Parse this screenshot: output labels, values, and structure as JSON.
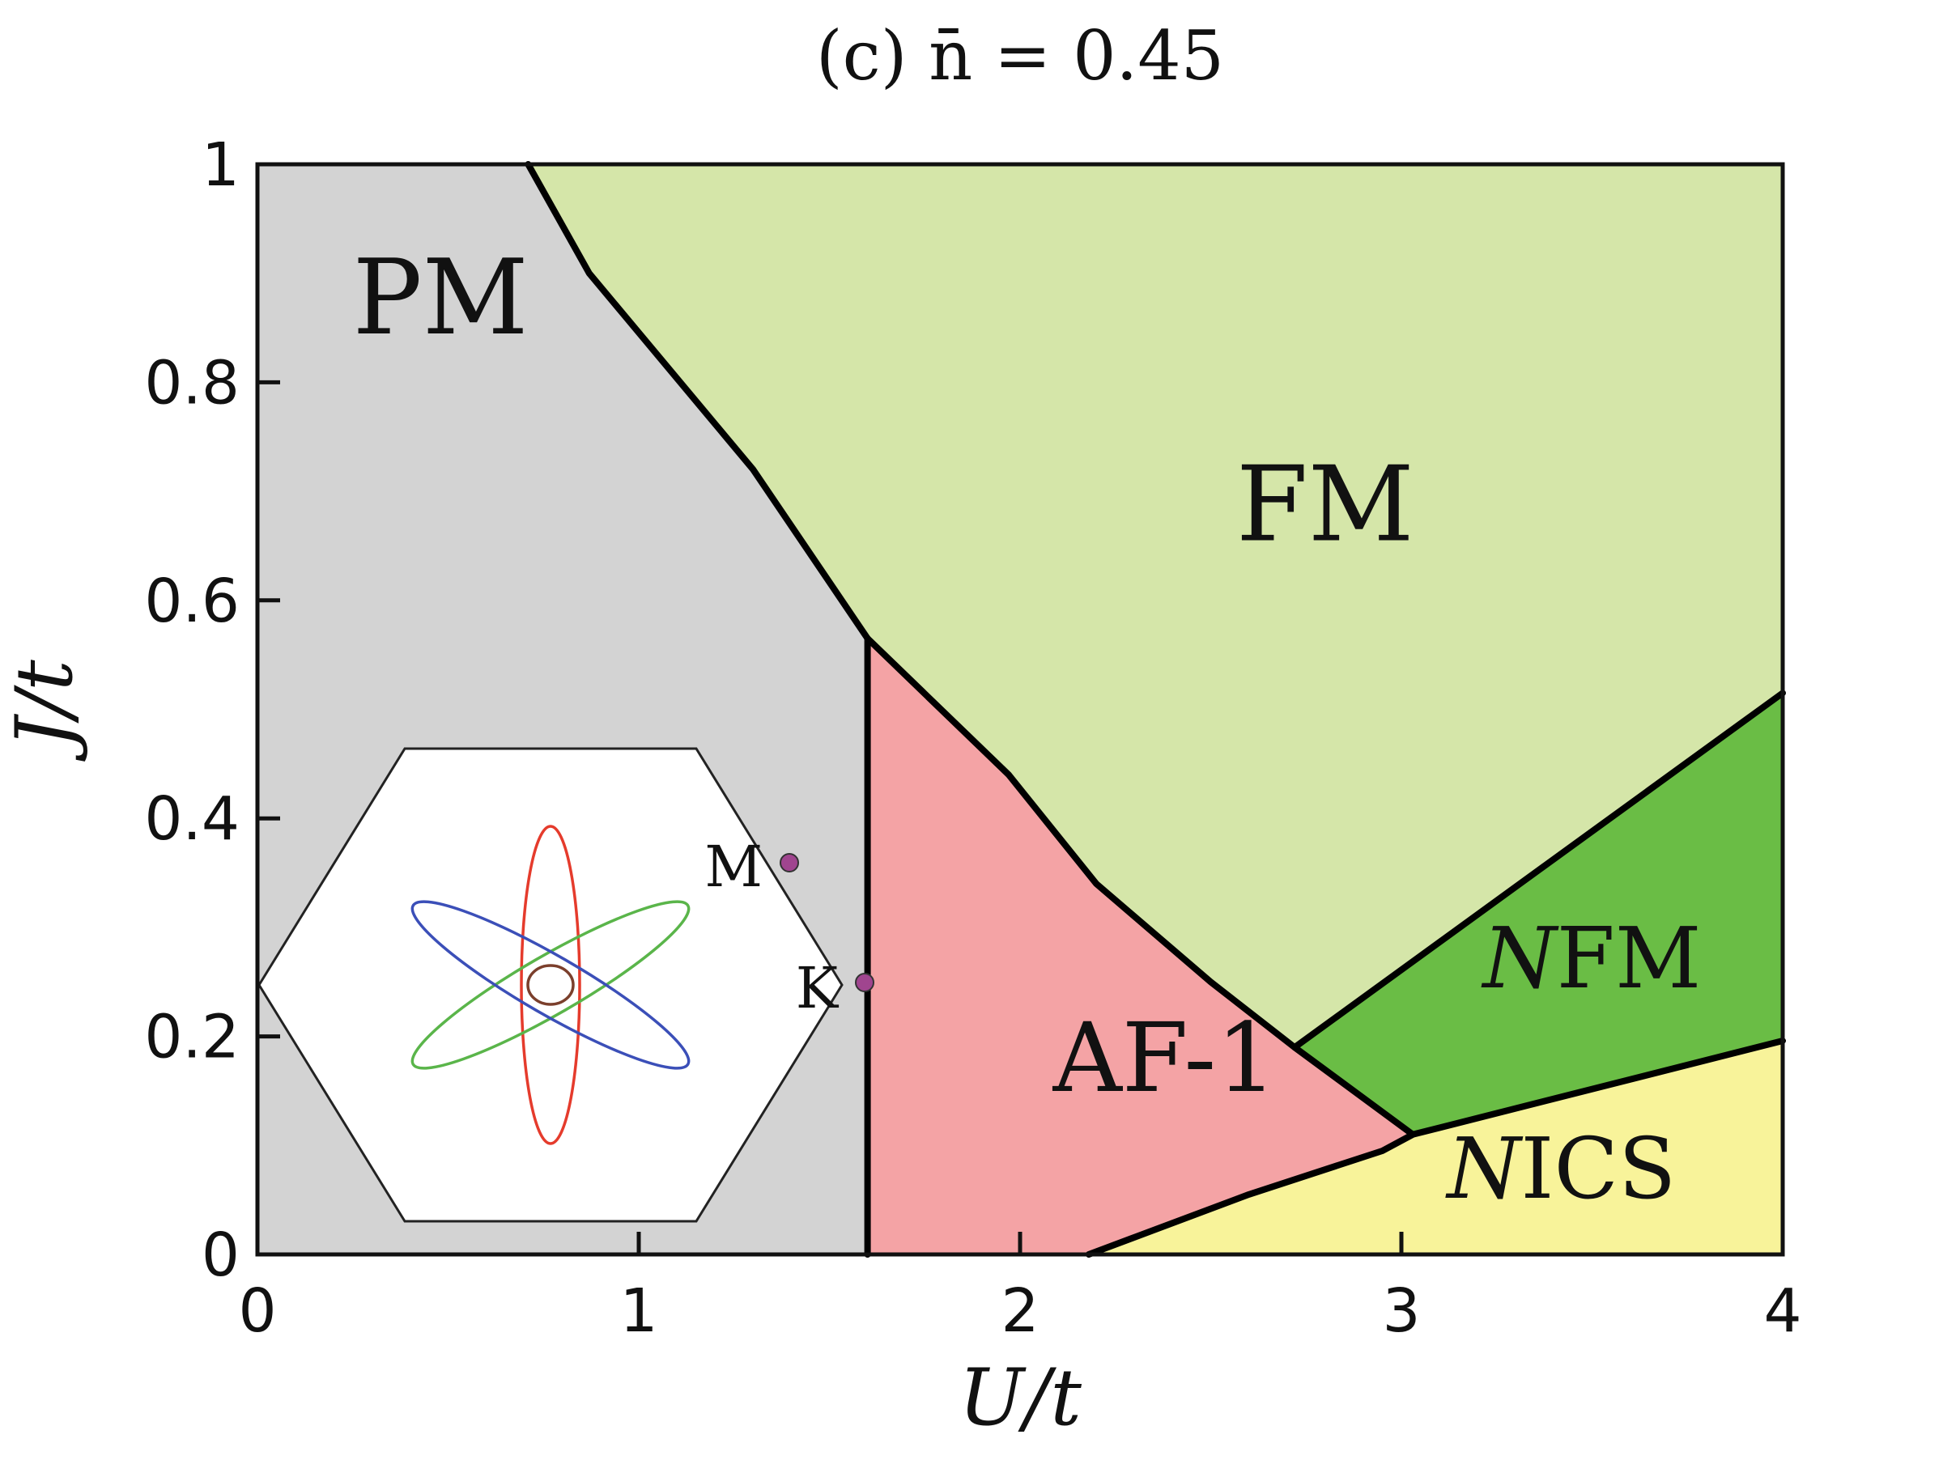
{
  "chart_data": {
    "type": "area",
    "title": "(c) n̄ = 0.45",
    "xlabel": "U/t",
    "ylabel": "J/t",
    "xlim": [
      0,
      4
    ],
    "ylim": [
      0,
      1
    ],
    "x_ticks": [
      "0",
      "1",
      "2",
      "3",
      "4"
    ],
    "y_ticks": [
      "0",
      "0.2",
      "0.4",
      "0.6",
      "0.8",
      "1"
    ],
    "regions": [
      {
        "name": "PM",
        "label": "PM",
        "color": "#d3d3d3",
        "polygon": [
          [
            0,
            0
          ],
          [
            1.6,
            0
          ],
          [
            1.6,
            0.565
          ],
          [
            1.3,
            0.72
          ],
          [
            0.87,
            0.9
          ],
          [
            0.71,
            1.0
          ],
          [
            0,
            1.0
          ]
        ]
      },
      {
        "name": "FM",
        "label": "FM",
        "color": "#d5e6a9",
        "polygon": [
          [
            0.71,
            1.0
          ],
          [
            4,
            1.0
          ],
          [
            4,
            0.515
          ],
          [
            2.72,
            0.19
          ],
          [
            2.5,
            0.25
          ],
          [
            2.2,
            0.34
          ],
          [
            1.97,
            0.44
          ],
          [
            1.6,
            0.565
          ],
          [
            1.3,
            0.72
          ],
          [
            0.87,
            0.9
          ]
        ]
      },
      {
        "name": "AF-1",
        "label": "AF-1",
        "color": "#f4a3a5",
        "polygon": [
          [
            1.6,
            0
          ],
          [
            2.18,
            0
          ],
          [
            2.6,
            0.055
          ],
          [
            2.95,
            0.095
          ],
          [
            3.03,
            0.11
          ],
          [
            2.72,
            0.19
          ],
          [
            2.5,
            0.25
          ],
          [
            2.2,
            0.34
          ],
          [
            1.97,
            0.44
          ],
          [
            1.6,
            0.565
          ]
        ]
      },
      {
        "name": "NFM",
        "label": "FM",
        "prefix": "N",
        "color": "#6abd45",
        "polygon": [
          [
            2.72,
            0.19
          ],
          [
            4,
            0.515
          ],
          [
            4,
            0.196
          ],
          [
            3.03,
            0.11
          ]
        ]
      },
      {
        "name": "NICS",
        "label": "ICS",
        "prefix": "N",
        "color": "#f8f39a",
        "polygon": [
          [
            2.18,
            0
          ],
          [
            4,
            0
          ],
          [
            4,
            0.196
          ],
          [
            3.03,
            0.11
          ],
          [
            2.95,
            0.095
          ],
          [
            2.6,
            0.055
          ]
        ]
      }
    ],
    "boundaries": [
      {
        "name": "PM-FM boundary",
        "points": [
          [
            0.71,
            1.0
          ],
          [
            0.87,
            0.9
          ],
          [
            1.3,
            0.72
          ],
          [
            1.6,
            0.565
          ]
        ]
      },
      {
        "name": "AF1-FM boundary",
        "points": [
          [
            1.6,
            0.565
          ],
          [
            1.97,
            0.44
          ],
          [
            2.2,
            0.34
          ],
          [
            2.5,
            0.25
          ],
          [
            2.72,
            0.19
          ],
          [
            3.03,
            0.11
          ]
        ]
      },
      {
        "name": "PM-AF1 boundary",
        "points": [
          [
            1.6,
            0
          ],
          [
            1.6,
            0.565
          ]
        ]
      },
      {
        "name": "NFM-FM boundary",
        "points": [
          [
            2.72,
            0.19
          ],
          [
            4,
            0.515
          ]
        ]
      },
      {
        "name": "NICS boundary",
        "points": [
          [
            2.18,
            0
          ],
          [
            2.6,
            0.055
          ],
          [
            2.95,
            0.095
          ],
          [
            3.03,
            0.11
          ],
          [
            4,
            0.196
          ]
        ]
      }
    ],
    "inset": {
      "description": "hexagonal Brillouin zone with Fermi surface",
      "points": [
        {
          "label": "M"
        },
        {
          "label": "K"
        }
      ],
      "curve_colors": [
        "#e53b2c",
        "#5ab54a",
        "#3b4fb8",
        "#7b3f2c"
      ]
    }
  },
  "colors": {
    "axis": "#111111",
    "boundary": "#000000",
    "marker": "#a0458f"
  }
}
